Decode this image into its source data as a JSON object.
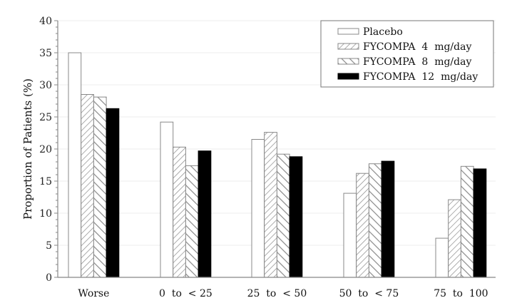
{
  "chart_data": {
    "type": "bar",
    "title": "",
    "xlabel": "",
    "ylabel": "Proportion of Patients (%)",
    "ylim": [
      0,
      40
    ],
    "yticks": [
      0,
      5,
      10,
      15,
      20,
      25,
      30,
      35,
      40
    ],
    "grid": true,
    "legend_position": "top-right",
    "categories": [
      "Worse",
      "0  to  < 25",
      "25  to  < 50",
      "50  to  < 75",
      "75  to  100"
    ],
    "series": [
      {
        "name": "Placebo",
        "pattern": "none",
        "fill": "#ffffff",
        "values": [
          35.0,
          24.2,
          21.5,
          13.1,
          6.1
        ]
      },
      {
        "name": "FYCOMPA  4  mg/day",
        "pattern": "forward-hatch",
        "fill": "#ffffff",
        "values": [
          28.5,
          20.3,
          22.6,
          16.2,
          12.1
        ]
      },
      {
        "name": "FYCOMPA  8  mg/day",
        "pattern": "back-hatch",
        "fill": "#ffffff",
        "values": [
          28.1,
          17.4,
          19.2,
          17.7,
          17.3
        ]
      },
      {
        "name": "FYCOMPA  12  mg/day",
        "pattern": "solid",
        "fill": "#000000",
        "values": [
          26.3,
          19.7,
          18.8,
          18.1,
          16.9
        ]
      }
    ]
  }
}
